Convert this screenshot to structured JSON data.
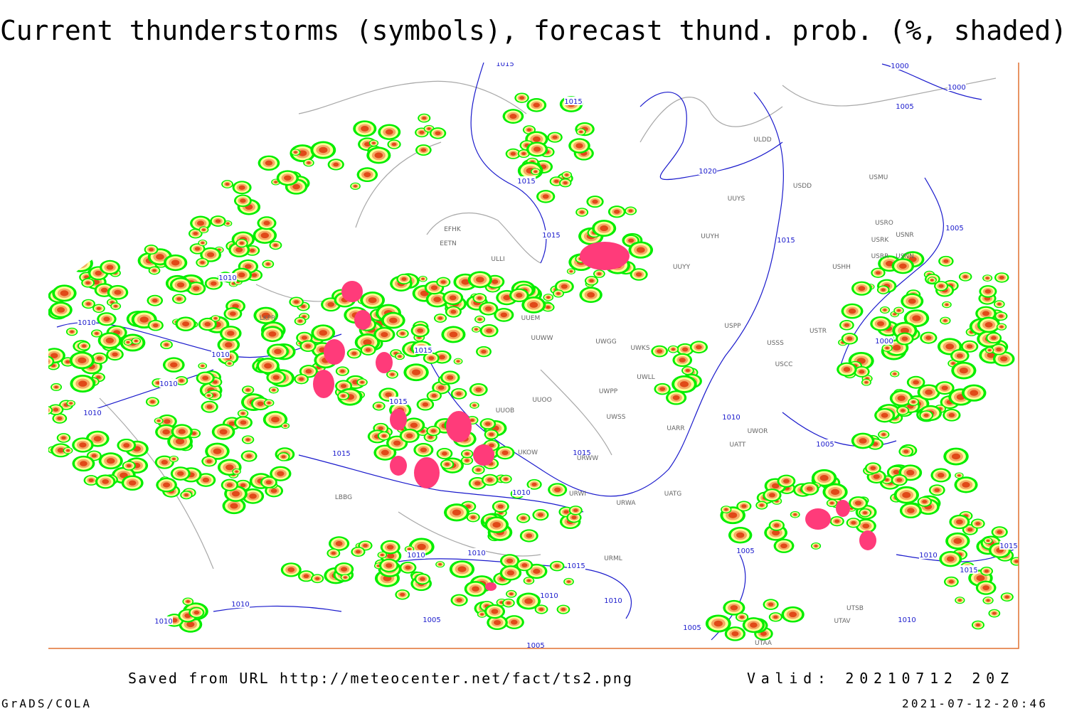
{
  "title": "Current thunderstorms (symbols), forecast thund. prob. (%, shaded)",
  "footer": {
    "source": "Saved from URL http://meteocenter.net/fact/ts2.png",
    "valid": "Valid: 20210712 20Z",
    "credit": "GrADS/COLA",
    "timestamp": "2021-07-12-20:46"
  },
  "map": {
    "isobar_labels": [
      "1015",
      "1000",
      "1000",
      "1005",
      "1015",
      "1020",
      "1015",
      "1015",
      "1015",
      "1005",
      "1010",
      "1010",
      "1010",
      "1015",
      "1010",
      "1015",
      "1010",
      "1010",
      "1015",
      "1015",
      "1005",
      "1010",
      "1000",
      "1005",
      "1010",
      "1010",
      "1015",
      "1010",
      "1010",
      "1010",
      "1010",
      "1005",
      "1005",
      "1005",
      "1010",
      "1015",
      "1015",
      "1010"
    ],
    "station_labels": [
      "ULDD",
      "USDD",
      "USMU",
      "UUYS",
      "UUYH",
      "UUYY",
      "USRO",
      "USRK",
      "USNR",
      "USRR",
      "USNN",
      "USHH",
      "UUEM",
      "UUWW",
      "UWGG",
      "UWKS",
      "USPP",
      "USTR",
      "USSS",
      "USCC",
      "UWLL",
      "UWPP",
      "UUOO",
      "UUOB",
      "UWSS",
      "UARR",
      "UATT",
      "UWOR",
      "UKOW",
      "URWW",
      "URWI",
      "UATG",
      "URWA",
      "URML",
      "UTSB",
      "UTAV",
      "UTAA",
      "EFHK",
      "EETN",
      "ULLI",
      "LKPR",
      "LBBG"
    ]
  }
}
